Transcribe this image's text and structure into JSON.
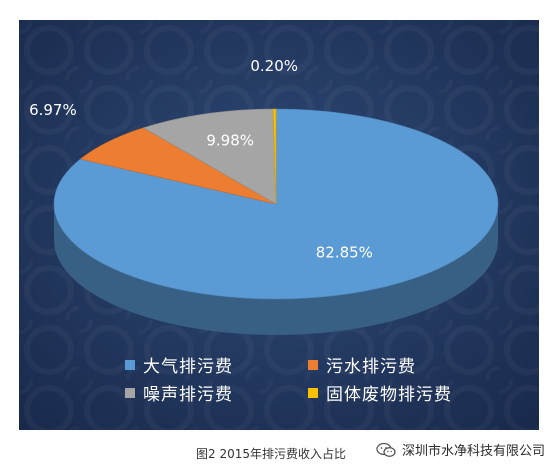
{
  "caption": "图2 2015年排污费收入占比",
  "watermark": {
    "icon": "wechat-icon",
    "text": "深圳市水净科技有限公司"
  },
  "chart_data": {
    "type": "pie",
    "style": "3d",
    "legend_position": "bottom",
    "categories": [
      "大气排污费",
      "污水排污费",
      "噪声排污费",
      "固体废物排污费"
    ],
    "values": [
      82.85,
      6.97,
      9.98,
      0.2
    ],
    "data_labels": [
      "82.85%",
      "6.97%",
      "9.98%",
      "0.20%"
    ],
    "colors": [
      "#5b9bd5",
      "#ed7d31",
      "#a5a5a5",
      "#ffc000"
    ],
    "background_color": "#1f3458"
  }
}
